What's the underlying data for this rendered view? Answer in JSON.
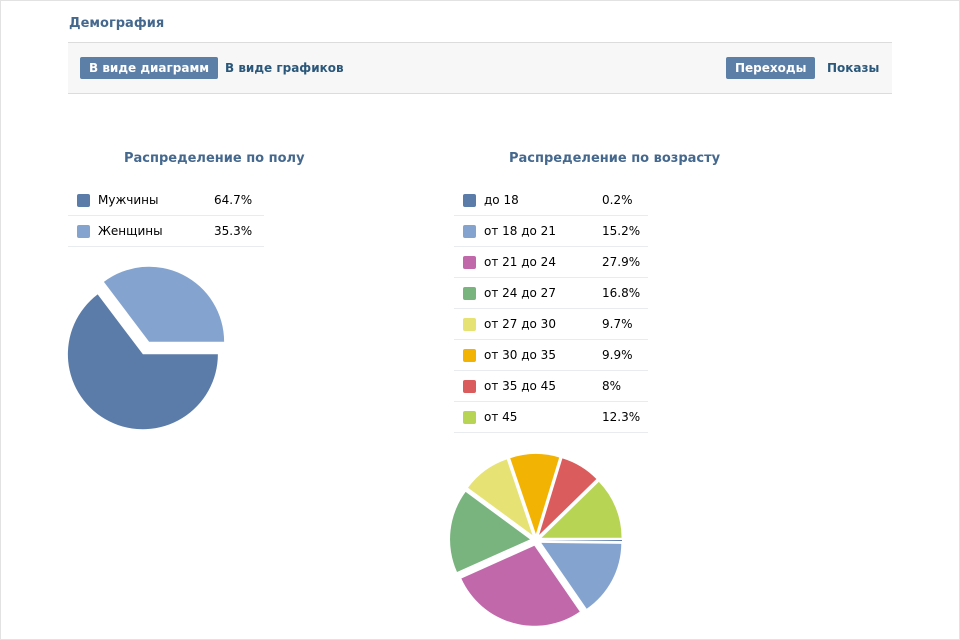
{
  "page": {
    "title": "Демография"
  },
  "toolbar": {
    "view_tabs": [
      {
        "label": "В виде диаграмм",
        "active": true
      },
      {
        "label": "В виде графиков",
        "active": false
      }
    ],
    "metric_tabs": [
      {
        "label": "Переходы",
        "active": true
      },
      {
        "label": "Показы",
        "active": false
      }
    ]
  },
  "colors": {
    "title": "#45688e",
    "active_tab_bg": "#5b7fa6",
    "link": "#2b587a"
  },
  "chart_data": [
    {
      "type": "pie",
      "title": "Распределение по полу",
      "categories": [
        "Мужчины",
        "Женщины"
      ],
      "values": [
        64.7,
        35.3
      ],
      "value_labels": [
        "64.7%",
        "35.3%"
      ],
      "colors": [
        "#5b7ca8",
        "#84a4cf"
      ],
      "legend": "above chart"
    },
    {
      "type": "pie",
      "title": "Распределение по возрасту",
      "categories": [
        "до 18",
        "от 18 до 21",
        "от 21 до 24",
        "от 24 до 27",
        "от 27 до 30",
        "от 30 до 35",
        "от 35 до 45",
        "от 45"
      ],
      "values": [
        0.2,
        15.2,
        27.9,
        16.8,
        9.7,
        9.9,
        8,
        12.3
      ],
      "value_labels": [
        "0.2%",
        "15.2%",
        "27.9%",
        "16.8%",
        "9.7%",
        "9.9%",
        "8%",
        "12.3%"
      ],
      "colors": [
        "#5b7ca8",
        "#84a4cf",
        "#c168ab",
        "#79b47e",
        "#e7e274",
        "#f2b302",
        "#db5c5c",
        "#b8d455"
      ],
      "legend": "above chart"
    }
  ]
}
